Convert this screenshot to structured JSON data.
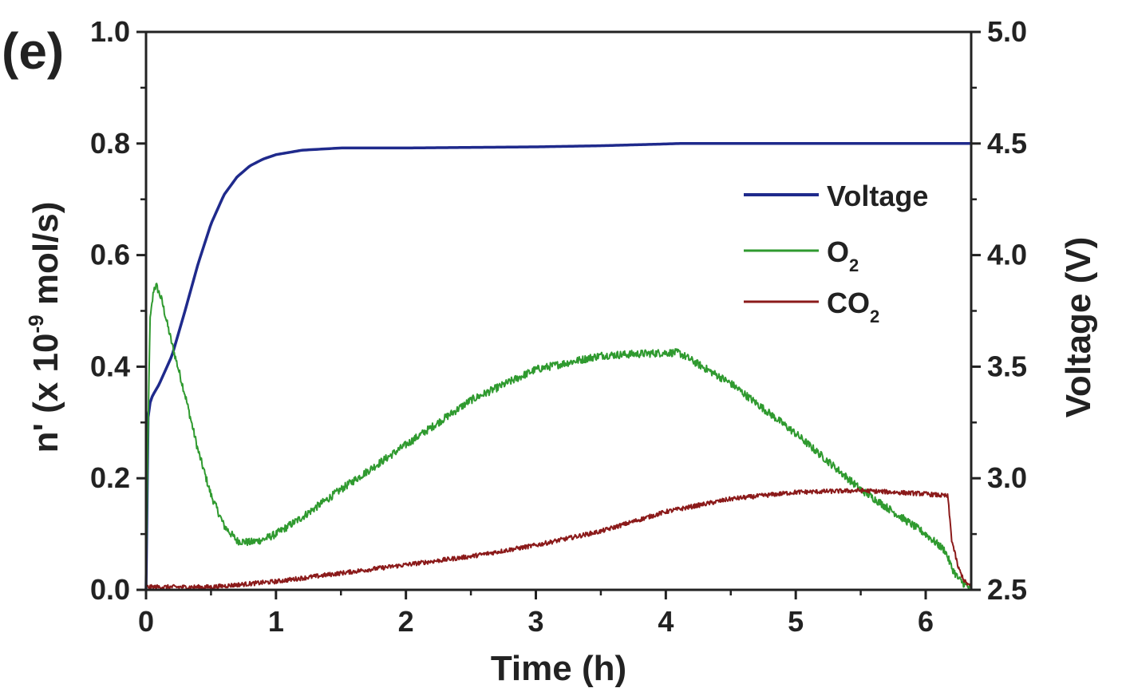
{
  "panel_label": "(e)",
  "chart_data": {
    "type": "line",
    "xlabel": "Time (h)",
    "ylabel": "n' (x 10-9 mol/s)",
    "ylabel_parts": {
      "main": "n' (x 10",
      "sup": "-9",
      "rest": " mol/s)"
    },
    "y2label": "Voltage (V)",
    "xlim": [
      0,
      6.35
    ],
    "ylim": [
      0,
      1.0
    ],
    "y2lim": [
      2.5,
      5.0
    ],
    "x_ticks": [
      "0",
      "1",
      "2",
      "3",
      "4",
      "5",
      "6"
    ],
    "y_ticks": [
      "0.0",
      "0.2",
      "0.4",
      "0.6",
      "0.8",
      "1.0"
    ],
    "y2_ticks": [
      "2.5",
      "3.0",
      "3.5",
      "4.0",
      "4.5",
      "5.0"
    ],
    "legend_position": "upper-right",
    "series": [
      {
        "name": "Voltage",
        "legend_parts": {
          "main": "Voltage",
          "sub": ""
        },
        "axis": "right",
        "color": "#1f2a8c",
        "noise": 0,
        "x": [
          0,
          0.005,
          0.02,
          0.05,
          0.1,
          0.2,
          0.3,
          0.4,
          0.5,
          0.6,
          0.7,
          0.8,
          0.9,
          1.0,
          1.2,
          1.5,
          2.0,
          3.0,
          3.5,
          4.0,
          4.1,
          5.0,
          6.0,
          6.35
        ],
        "y": [
          2.5,
          3.15,
          3.32,
          3.37,
          3.42,
          3.55,
          3.75,
          3.96,
          4.14,
          4.27,
          4.35,
          4.4,
          4.43,
          4.45,
          4.47,
          4.48,
          4.48,
          4.485,
          4.49,
          4.498,
          4.5,
          4.5,
          4.5,
          4.5
        ]
      },
      {
        "name": "O2",
        "legend_parts": {
          "main": "O",
          "sub": "2"
        },
        "axis": "left",
        "color": "#2f9a2f",
        "noise": 0.007,
        "x": [
          0,
          0.01,
          0.03,
          0.06,
          0.08,
          0.12,
          0.2,
          0.3,
          0.4,
          0.5,
          0.6,
          0.7,
          0.8,
          0.9,
          1.0,
          1.2,
          1.5,
          2.0,
          2.5,
          3.0,
          3.5,
          4.0,
          4.1,
          4.5,
          5.0,
          5.5,
          6.0,
          6.15,
          6.2,
          6.25,
          6.3,
          6.35
        ],
        "y": [
          0.0,
          0.2,
          0.48,
          0.54,
          0.545,
          0.52,
          0.44,
          0.35,
          0.25,
          0.17,
          0.115,
          0.088,
          0.085,
          0.09,
          0.1,
          0.13,
          0.18,
          0.26,
          0.34,
          0.395,
          0.42,
          0.425,
          0.425,
          0.37,
          0.28,
          0.18,
          0.1,
          0.07,
          0.04,
          0.02,
          0.01,
          0.0
        ]
      },
      {
        "name": "CO2",
        "legend_parts": {
          "main": "CO",
          "sub": "2"
        },
        "axis": "left",
        "color": "#8b1a1a",
        "noise": 0.004,
        "x": [
          0,
          0.5,
          1.0,
          1.5,
          2.0,
          2.5,
          3.0,
          3.5,
          4.0,
          4.5,
          5.0,
          5.5,
          6.0,
          6.17,
          6.2,
          6.25,
          6.3,
          6.35
        ],
        "y": [
          0.005,
          0.005,
          0.015,
          0.03,
          0.045,
          0.06,
          0.08,
          0.105,
          0.14,
          0.163,
          0.175,
          0.178,
          0.172,
          0.168,
          0.09,
          0.04,
          0.015,
          0.005
        ]
      }
    ]
  }
}
